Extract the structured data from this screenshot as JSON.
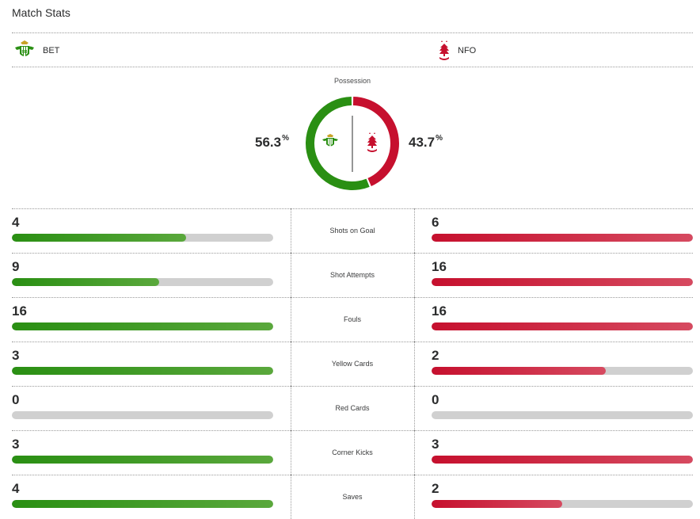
{
  "header": {
    "title": "Match Stats"
  },
  "teams": {
    "home": {
      "abbr": "BET",
      "color": "#2a8f13"
    },
    "away": {
      "abbr": "NFO",
      "color": "#c6102e"
    }
  },
  "possession": {
    "label": "Possession",
    "home_value": "56.3",
    "away_value": "43.7",
    "unit": "%",
    "home_fraction": 0.563
  },
  "stats": [
    {
      "label": "Shots on Goal",
      "home": "4",
      "away": "6",
      "home_fill": 0.667,
      "away_fill": 1.0
    },
    {
      "label": "Shot Attempts",
      "home": "9",
      "away": "16",
      "home_fill": 0.5625,
      "away_fill": 1.0
    },
    {
      "label": "Fouls",
      "home": "16",
      "away": "16",
      "home_fill": 1.0,
      "away_fill": 1.0
    },
    {
      "label": "Yellow Cards",
      "home": "3",
      "away": "2",
      "home_fill": 1.0,
      "away_fill": 0.667
    },
    {
      "label": "Red Cards",
      "home": "0",
      "away": "0",
      "home_fill": 0,
      "away_fill": 0
    },
    {
      "label": "Corner Kicks",
      "home": "3",
      "away": "3",
      "home_fill": 1.0,
      "away_fill": 1.0
    },
    {
      "label": "Saves",
      "home": "4",
      "away": "2",
      "home_fill": 1.0,
      "away_fill": 0.5
    }
  ]
}
